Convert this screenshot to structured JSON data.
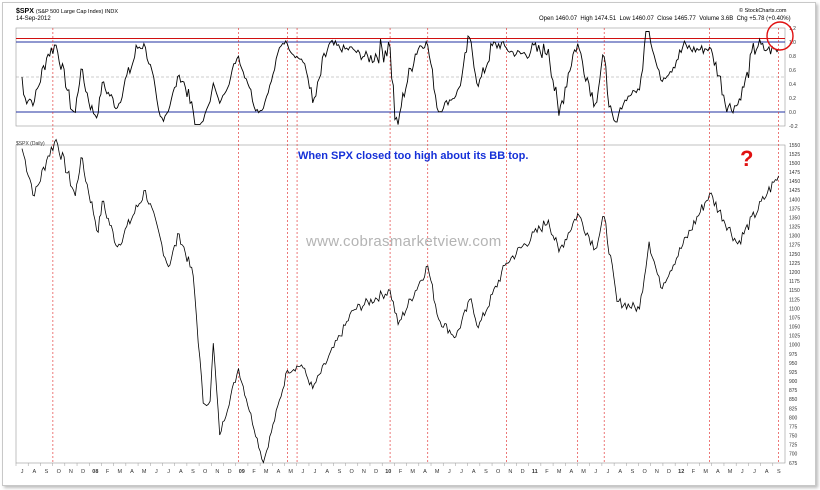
{
  "header": {
    "symbol": "$SPX",
    "name": "(S&P 500 Large Cap Index) INDX",
    "date": "14-Sep-2012",
    "brand": "© StockCharts.com",
    "open": "Open 1460.07",
    "high": "High 1474.51",
    "low": "Low 1460.07",
    "close": "Close 1465.77",
    "volume": "Volume 3.6B",
    "chg": "Chg +5.78 (+0.40%)"
  },
  "annotation": "When SPX closed too high about its BB top.",
  "watermark": "www.cobrasmarketview.com",
  "question_mark": "?",
  "price_legend": "$SPX (Daily)",
  "colors": {
    "price_line": "#000000",
    "indicator_line": "#000000",
    "upper_band": "#d01010",
    "blue_line": "#2030a0",
    "signal_line": "#e02020",
    "annotation": "#1530d8"
  },
  "chart_data": [
    {
      "type": "line",
      "name": "indicator",
      "y_ticks": [
        "1.2",
        "1.0",
        "0.8",
        "0.6",
        "0.4",
        "0.2",
        "0.0",
        "-0.2"
      ],
      "ylim": [
        -0.2,
        1.2
      ],
      "reference_lines": [
        {
          "value": 1.05,
          "color": "#d01010"
        },
        {
          "value": 1.0,
          "color": "#2030a0"
        },
        {
          "value": 0.0,
          "color": "#2030a0"
        }
      ],
      "signals": [
        0.0,
        0.8,
        0.95,
        0.0,
        0.0,
        0.8,
        0.0,
        0.0,
        0.95,
        0.0,
        0.85
      ]
    },
    {
      "type": "line",
      "name": "$SPX (Daily)",
      "ylim": [
        675,
        1550
      ],
      "y_ticks": [
        "1550",
        "1525",
        "1500",
        "1475",
        "1450",
        "1425",
        "1400",
        "1375",
        "1350",
        "1325",
        "1300",
        "1275",
        "1250",
        "1225",
        "1200",
        "1175",
        "1150",
        "1125",
        "1100",
        "1075",
        "1050",
        "1025",
        "1000",
        "975",
        "950",
        "925",
        "900",
        "875",
        "850",
        "825",
        "800",
        "775",
        "750",
        "725",
        "700",
        "675"
      ],
      "x_labels": [
        "J",
        "A",
        "S",
        "O",
        "N",
        "D",
        "08",
        "F",
        "M",
        "A",
        "M",
        "J",
        "J",
        "A",
        "S",
        "O",
        "N",
        "D",
        "09",
        "F",
        "M",
        "A",
        "M",
        "J",
        "J",
        "A",
        "S",
        "O",
        "N",
        "D",
        "10",
        "F",
        "M",
        "A",
        "M",
        "J",
        "J",
        "A",
        "S",
        "O",
        "N",
        "D",
        "11",
        "F",
        "M",
        "A",
        "M",
        "J",
        "J",
        "A",
        "S",
        "O",
        "N",
        "D",
        "12",
        "F",
        "M",
        "A",
        "M",
        "J",
        "J",
        "A",
        "S"
      ],
      "x_start": "2007-07",
      "x_end": "2012-09",
      "signal_dates": [
        "2007-10-01",
        "2009-01-06",
        "2009-05-08",
        "2009-06-01",
        "2010-01-19",
        "2010-04-23",
        "2010-11-05",
        "2011-05-02",
        "2011-07-07",
        "2012-03-26",
        "2012-09-14"
      ],
      "points": [
        [
          "2007-07-16",
          1540
        ],
        [
          "2007-08-16",
          1410
        ],
        [
          "2007-09-19",
          1520
        ],
        [
          "2007-10-09",
          1565
        ],
        [
          "2007-11-26",
          1410
        ],
        [
          "2007-12-10",
          1515
        ],
        [
          "2008-01-22",
          1310
        ],
        [
          "2008-02-01",
          1395
        ],
        [
          "2008-03-10",
          1270
        ],
        [
          "2008-05-19",
          1425
        ],
        [
          "2008-07-15",
          1215
        ],
        [
          "2008-08-11",
          1305
        ],
        [
          "2008-09-15",
          1190
        ],
        [
          "2008-10-10",
          840
        ],
        [
          "2008-10-27",
          845
        ],
        [
          "2008-11-04",
          1005
        ],
        [
          "2008-11-20",
          752
        ],
        [
          "2009-01-06",
          935
        ],
        [
          "2009-03-09",
          676
        ],
        [
          "2009-05-08",
          930
        ],
        [
          "2009-06-12",
          945
        ],
        [
          "2009-07-10",
          880
        ],
        [
          "2009-10-19",
          1095
        ],
        [
          "2010-01-19",
          1150
        ],
        [
          "2010-02-08",
          1056
        ],
        [
          "2010-04-23",
          1217
        ],
        [
          "2010-05-20",
          1071
        ],
        [
          "2010-07-02",
          1022
        ],
        [
          "2010-08-09",
          1127
        ],
        [
          "2010-08-27",
          1047
        ],
        [
          "2010-11-05",
          1225
        ],
        [
          "2011-02-18",
          1343
        ],
        [
          "2011-03-16",
          1256
        ],
        [
          "2011-05-02",
          1361
        ],
        [
          "2011-06-15",
          1265
        ],
        [
          "2011-07-07",
          1353
        ],
        [
          "2011-08-08",
          1119
        ],
        [
          "2011-10-03",
          1099
        ],
        [
          "2011-10-27",
          1284
        ],
        [
          "2011-11-25",
          1158
        ],
        [
          "2012-03-26",
          1416
        ],
        [
          "2012-06-04",
          1278
        ],
        [
          "2012-08-17",
          1418
        ],
        [
          "2012-09-14",
          1465
        ]
      ]
    }
  ]
}
